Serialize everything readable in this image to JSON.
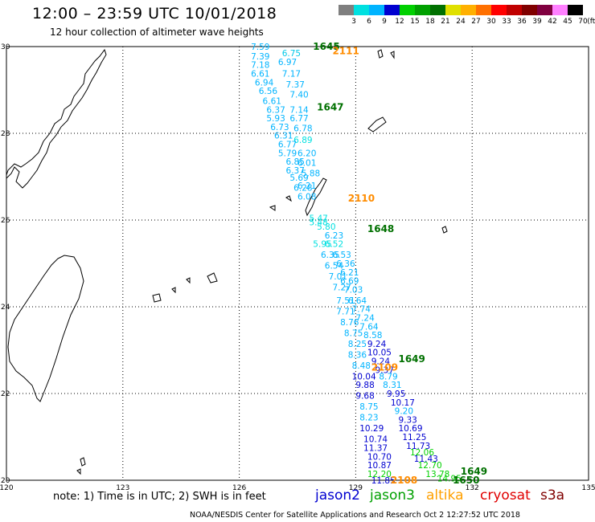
{
  "title": "12:00 – 23:59 UTC 10/01/2018",
  "subtitle": "12 hour collection of altimeter wave heights",
  "colorbar": {
    "unit": "(ft)",
    "labels": [
      "3",
      "6",
      "9",
      "12",
      "15",
      "18",
      "21",
      "24",
      "27",
      "30",
      "33",
      "36",
      "39",
      "42",
      "45",
      "70"
    ],
    "colors": [
      "#7f7f7f",
      "#00e0e0",
      "#00b4ff",
      "#0000d0",
      "#00d000",
      "#00a000",
      "#007000",
      "#e0e000",
      "#ffb000",
      "#ff7000",
      "#ff0000",
      "#c00000",
      "#800000",
      "#800040",
      "#ff80ff",
      "#000000"
    ]
  },
  "map": {
    "lat_labels": [
      "30",
      "28",
      "26",
      "24",
      "22",
      "20"
    ],
    "lon_labels": [
      "120",
      "123",
      "126",
      "129",
      "132",
      "135"
    ],
    "pass_times": [
      {
        "text": "1645",
        "color": "#007000",
        "lat": 30.0,
        "lon": 127.9
      },
      {
        "text": "2111",
        "color": "#ff8c00",
        "lat": 29.9,
        "lon": 128.4
      },
      {
        "text": "1647",
        "color": "#007000",
        "lat": 28.6,
        "lon": 128.0
      },
      {
        "text": "2110",
        "color": "#ff8c00",
        "lat": 26.5,
        "lon": 128.8
      },
      {
        "text": "1648",
        "color": "#007000",
        "lat": 25.8,
        "lon": 129.3
      },
      {
        "text": "1649",
        "color": "#007000",
        "lat": 22.8,
        "lon": 130.1
      },
      {
        "text": "2109",
        "color": "#ff8c00",
        "lat": 22.6,
        "lon": 129.4
      },
      {
        "text": "2108",
        "color": "#ff8c00",
        "lat": 20.0,
        "lon": 129.9
      },
      {
        "text": "1649",
        "color": "#007000",
        "lat": 20.2,
        "lon": 131.7
      },
      {
        "text": "1650",
        "color": "#007000",
        "lat": 20.0,
        "lon": 131.5
      }
    ],
    "swh": [
      {
        "text": "7.59",
        "color": "#00b4ff",
        "lat": 30.0,
        "lon": 126.3
      },
      {
        "text": "6.75",
        "color": "#00c8e8",
        "lat": 29.85,
        "lon": 127.1
      },
      {
        "text": "7.39",
        "color": "#00b4ff",
        "lat": 29.78,
        "lon": 126.3
      },
      {
        "text": "6.97",
        "color": "#00b4ff",
        "lat": 29.65,
        "lon": 127.0
      },
      {
        "text": "7.18",
        "color": "#00b4ff",
        "lat": 29.58,
        "lon": 126.3
      },
      {
        "text": "6.61",
        "color": "#00b4ff",
        "lat": 29.38,
        "lon": 126.3
      },
      {
        "text": "7.17",
        "color": "#00b4ff",
        "lat": 29.38,
        "lon": 127.1
      },
      {
        "text": "6.94",
        "color": "#00b4ff",
        "lat": 29.18,
        "lon": 126.4
      },
      {
        "text": "7.37",
        "color": "#00b4ff",
        "lat": 29.13,
        "lon": 127.2
      },
      {
        "text": "6.56",
        "color": "#00b4ff",
        "lat": 28.98,
        "lon": 126.5
      },
      {
        "text": "7.40",
        "color": "#00b4ff",
        "lat": 28.9,
        "lon": 127.3
      },
      {
        "text": "6.61",
        "color": "#00b4ff",
        "lat": 28.75,
        "lon": 126.6
      },
      {
        "text": "6.37",
        "color": "#00b4ff",
        "lat": 28.55,
        "lon": 126.7
      },
      {
        "text": "7.14",
        "color": "#00b4ff",
        "lat": 28.55,
        "lon": 127.3
      },
      {
        "text": "5.93",
        "color": "#00b4ff",
        "lat": 28.35,
        "lon": 126.7
      },
      {
        "text": "6.77",
        "color": "#00b4ff",
        "lat": 28.35,
        "lon": 127.3
      },
      {
        "text": "6.73",
        "color": "#00b4ff",
        "lat": 28.15,
        "lon": 126.8
      },
      {
        "text": "6.78",
        "color": "#00b4ff",
        "lat": 28.12,
        "lon": 127.4
      },
      {
        "text": "6.31",
        "color": "#00b4ff",
        "lat": 27.95,
        "lon": 126.9
      },
      {
        "text": "6.89",
        "color": "#00e0e0",
        "lat": 27.85,
        "lon": 127.4
      },
      {
        "text": "6.77",
        "color": "#00b4ff",
        "lat": 27.75,
        "lon": 127.0
      },
      {
        "text": "5.79",
        "color": "#00b4ff",
        "lat": 27.55,
        "lon": 127.0
      },
      {
        "text": "6.20",
        "color": "#00b4ff",
        "lat": 27.55,
        "lon": 127.5
      },
      {
        "text": "6.85",
        "color": "#00b4ff",
        "lat": 27.35,
        "lon": 127.2
      },
      {
        "text": "6.01",
        "color": "#00b4ff",
        "lat": 27.32,
        "lon": 127.5
      },
      {
        "text": "6.37",
        "color": "#00b4ff",
        "lat": 27.15,
        "lon": 127.2
      },
      {
        "text": "5.88",
        "color": "#00b4ff",
        "lat": 27.08,
        "lon": 127.6
      },
      {
        "text": "5.69",
        "color": "#00b4ff",
        "lat": 26.98,
        "lon": 127.3
      },
      {
        "text": "6.21",
        "color": "#00b4ff",
        "lat": 26.8,
        "lon": 127.5
      },
      {
        "text": "6.28",
        "color": "#00b4ff",
        "lat": 26.75,
        "lon": 127.4
      },
      {
        "text": "6.08",
        "color": "#00b4ff",
        "lat": 26.55,
        "lon": 127.5
      },
      {
        "text": "5.47",
        "color": "#00e0e0",
        "lat": 26.05,
        "lon": 127.8
      },
      {
        "text": "5.48",
        "color": "#00e0e0",
        "lat": 25.95,
        "lon": 127.8
      },
      {
        "text": "5.80",
        "color": "#00e0e0",
        "lat": 25.85,
        "lon": 128.0
      },
      {
        "text": "6.23",
        "color": "#00b4ff",
        "lat": 25.65,
        "lon": 128.2
      },
      {
        "text": "5.95",
        "color": "#00e0e0",
        "lat": 25.45,
        "lon": 127.9
      },
      {
        "text": "6.52",
        "color": "#00e0e0",
        "lat": 25.45,
        "lon": 128.2
      },
      {
        "text": "6.35",
        "color": "#00b4ff",
        "lat": 25.2,
        "lon": 128.1
      },
      {
        "text": "6.53",
        "color": "#00b4ff",
        "lat": 25.2,
        "lon": 128.4
      },
      {
        "text": "6.36",
        "color": "#00b4ff",
        "lat": 25.0,
        "lon": 128.5
      },
      {
        "text": "6.54",
        "color": "#00b4ff",
        "lat": 24.95,
        "lon": 128.2
      },
      {
        "text": "6.21",
        "color": "#00b4ff",
        "lat": 24.8,
        "lon": 128.6
      },
      {
        "text": "7.01",
        "color": "#00b4ff",
        "lat": 24.7,
        "lon": 128.3
      },
      {
        "text": "6.69",
        "color": "#00b4ff",
        "lat": 24.6,
        "lon": 128.6
      },
      {
        "text": "7.27",
        "color": "#00b4ff",
        "lat": 24.45,
        "lon": 128.4
      },
      {
        "text": "7.03",
        "color": "#00b4ff",
        "lat": 24.4,
        "lon": 128.7
      },
      {
        "text": "7.51",
        "color": "#00b4ff",
        "lat": 24.15,
        "lon": 128.5
      },
      {
        "text": "6.64",
        "color": "#00b4ff",
        "lat": 24.15,
        "lon": 128.8
      },
      {
        "text": "7.71",
        "color": "#00b4ff",
        "lat": 23.9,
        "lon": 128.5
      },
      {
        "text": "7.74",
        "color": "#00b4ff",
        "lat": 23.95,
        "lon": 128.9
      },
      {
        "text": "7.24",
        "color": "#00b4ff",
        "lat": 23.75,
        "lon": 129.0
      },
      {
        "text": "8.76",
        "color": "#00b4ff",
        "lat": 23.65,
        "lon": 128.6
      },
      {
        "text": "7.64",
        "color": "#00b4ff",
        "lat": 23.55,
        "lon": 129.1
      },
      {
        "text": "8.75",
        "color": "#00b4ff",
        "lat": 23.4,
        "lon": 128.7
      },
      {
        "text": "8.58",
        "color": "#00b4ff",
        "lat": 23.35,
        "lon": 129.2
      },
      {
        "text": "8.25",
        "color": "#00b4ff",
        "lat": 23.15,
        "lon": 128.8
      },
      {
        "text": "9.24",
        "color": "#0000d0",
        "lat": 23.15,
        "lon": 129.3
      },
      {
        "text": "10.05",
        "color": "#0000d0",
        "lat": 22.95,
        "lon": 129.3
      },
      {
        "text": "8.36",
        "color": "#00b4ff",
        "lat": 22.9,
        "lon": 128.8
      },
      {
        "text": "9.24",
        "color": "#0000d0",
        "lat": 22.75,
        "lon": 129.4
      },
      {
        "text": "8.48",
        "color": "#00b4ff",
        "lat": 22.65,
        "lon": 128.9
      },
      {
        "text": "9.37",
        "color": "#0000d0",
        "lat": 22.55,
        "lon": 129.5
      },
      {
        "text": "10.04",
        "color": "#0000d0",
        "lat": 22.4,
        "lon": 128.9
      },
      {
        "text": "8.79",
        "color": "#00b4ff",
        "lat": 22.4,
        "lon": 129.6
      },
      {
        "text": "8.31",
        "color": "#00b4ff",
        "lat": 22.2,
        "lon": 129.7
      },
      {
        "text": "9.88",
        "color": "#0000d0",
        "lat": 22.2,
        "lon": 129.0
      },
      {
        "text": "9.95",
        "color": "#0000d0",
        "lat": 22.0,
        "lon": 129.8
      },
      {
        "text": "9.68",
        "color": "#0000d0",
        "lat": 21.95,
        "lon": 129.0
      },
      {
        "text": "10.17",
        "color": "#0000d0",
        "lat": 21.8,
        "lon": 129.9
      },
      {
        "text": "8.75",
        "color": "#00b4ff",
        "lat": 21.7,
        "lon": 129.1
      },
      {
        "text": "9.20",
        "color": "#00b4ff",
        "lat": 21.6,
        "lon": 130.0
      },
      {
        "text": "9.33",
        "color": "#0000d0",
        "lat": 21.4,
        "lon": 130.1
      },
      {
        "text": "8.23",
        "color": "#00b4ff",
        "lat": 21.45,
        "lon": 129.1
      },
      {
        "text": "10.69",
        "color": "#0000d0",
        "lat": 21.2,
        "lon": 130.1
      },
      {
        "text": "10.29",
        "color": "#0000d0",
        "lat": 21.2,
        "lon": 129.1
      },
      {
        "text": "11.25",
        "color": "#0000d0",
        "lat": 21.0,
        "lon": 130.2
      },
      {
        "text": "10.74",
        "color": "#0000d0",
        "lat": 20.95,
        "lon": 129.2
      },
      {
        "text": "11.73",
        "color": "#0000d0",
        "lat": 20.8,
        "lon": 130.3
      },
      {
        "text": "11.37",
        "color": "#0000d0",
        "lat": 20.75,
        "lon": 129.2
      },
      {
        "text": "12.06",
        "color": "#00d000",
        "lat": 20.65,
        "lon": 130.4
      },
      {
        "text": "10.70",
        "color": "#0000d0",
        "lat": 20.55,
        "lon": 129.3
      },
      {
        "text": "11.43",
        "color": "#0000d0",
        "lat": 20.5,
        "lon": 130.5
      },
      {
        "text": "10.87",
        "color": "#0000d0",
        "lat": 20.35,
        "lon": 129.3
      },
      {
        "text": "12.70",
        "color": "#00d000",
        "lat": 20.35,
        "lon": 130.6
      },
      {
        "text": "12.20",
        "color": "#00d000",
        "lat": 20.15,
        "lon": 129.3
      },
      {
        "text": "13.78",
        "color": "#00d000",
        "lat": 20.15,
        "lon": 130.8
      },
      {
        "text": "14.95",
        "color": "#00d000",
        "lat": 20.05,
        "lon": 131.1
      },
      {
        "text": "11.85",
        "color": "#0000d0",
        "lat": 20.0,
        "lon": 129.4
      }
    ]
  },
  "note": "note:  1) Time is in UTC;  2) SWH is in feet",
  "legend": [
    {
      "text": "jason2",
      "color": "#0000d0"
    },
    {
      "text": "jason3",
      "color": "#00a000"
    },
    {
      "text": "altika",
      "color": "#ffa000"
    },
    {
      "text": "cryosat",
      "color": "#e00000"
    },
    {
      "text": "s3a",
      "color": "#800000"
    }
  ],
  "credit": "NOAA/NESDIS Center for Satellite Applications and Research     Oct  2 12:27:52 UTC 2018"
}
